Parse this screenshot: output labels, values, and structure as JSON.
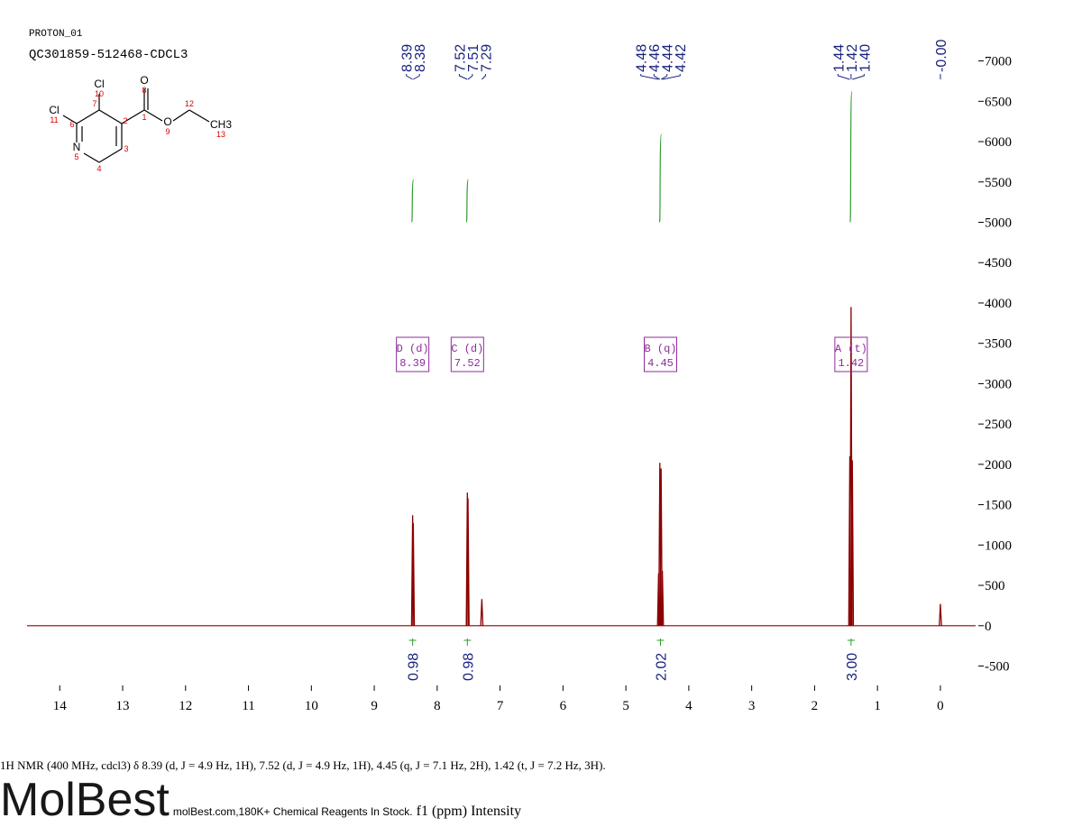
{
  "header": {
    "title": "PROTON_01",
    "sample": "QC301859-512468-CDCL3"
  },
  "structure": {
    "atoms": [
      {
        "symbol": "Cl",
        "number": "10"
      },
      {
        "symbol": "Cl",
        "number": "11"
      },
      {
        "symbol": "O",
        "number": "8"
      },
      {
        "symbol": "O",
        "number": "9"
      },
      {
        "symbol": "N",
        "number": "5"
      },
      {
        "symbol": "CH3",
        "number": "13"
      }
    ],
    "carbon_numbers": [
      "1",
      "2",
      "3",
      "4",
      "6",
      "7",
      "12"
    ]
  },
  "description": "1H NMR (400 MHz, cdcl3) δ 8.39 (d, J = 4.9 Hz, 1H), 7.52 (d, J = 4.9 Hz, 1H), 4.45 (q, J = 7.1 Hz, 2H), 1.42 (t, J = 7.2 Hz, 3H).",
  "watermark": {
    "brand": "MolBest",
    "tagline": "molBest.com,180K+ Chemical Reagents In Stock."
  },
  "chart_data": {
    "type": "nmr",
    "x_label": "f1 (ppm)",
    "y_label": "Intensity",
    "x": [
      8.39,
      8.38,
      7.52,
      7.51,
      7.29,
      4.48,
      4.46,
      4.44,
      4.42,
      1.44,
      1.42,
      1.4,
      0.0
    ],
    "peak_labels": [
      "8.39",
      "8.38",
      "7.52",
      "7.51",
      "7.29",
      "4.48",
      "4.46",
      "4.44",
      "4.42",
      "1.44",
      "1.42",
      "1.40",
      "-0.00"
    ],
    "values": [
      1370,
      1270,
      1650,
      1580,
      330,
      650,
      2020,
      1950,
      680,
      2100,
      3950,
      2050,
      270
    ],
    "color": "#8b0000",
    "integrals": {
      "x": [
        8.39,
        7.52,
        4.45,
        1.42
      ],
      "values": [
        0.98,
        0.98,
        2.02,
        3.0
      ],
      "value_labels": [
        "0.98",
        "0.98",
        "2.02",
        "3.00"
      ],
      "color": "#2e9b2e"
    },
    "multiplets": [
      {
        "name": "D (d)",
        "shift": "8.39",
        "x": 8.39
      },
      {
        "name": "C (d)",
        "shift": "7.52",
        "x": 7.52
      },
      {
        "name": "B (q)",
        "shift": "4.45",
        "x": 4.45
      },
      {
        "name": "A (t)",
        "shift": "1.42",
        "x": 1.42
      }
    ],
    "xlim": [
      14.52,
      -0.56
    ],
    "ylim": [
      -740,
      7420
    ],
    "xticks": [
      14,
      13,
      12,
      11,
      10,
      9,
      8,
      7,
      6,
      5,
      4,
      3,
      2,
      1,
      0
    ],
    "yticks": [
      -500,
      0,
      500,
      1000,
      1500,
      2000,
      2500,
      3000,
      3500,
      4000,
      4500,
      5000,
      5500,
      6000,
      6500,
      7000
    ]
  }
}
